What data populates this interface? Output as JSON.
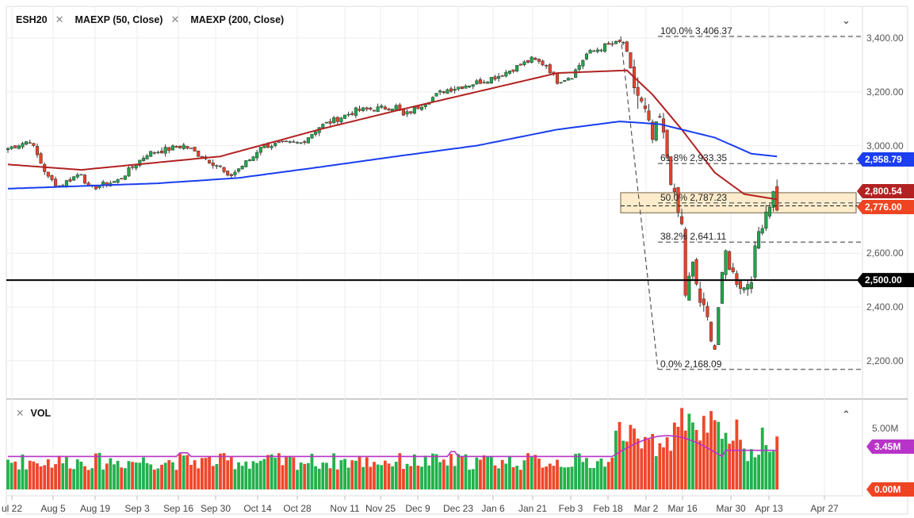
{
  "legend": {
    "symbol": "ESH20",
    "indicators": [
      {
        "label": "MAEXP (50, Close)",
        "color": "#b22222"
      },
      {
        "label": "MAEXP (200, Close)",
        "color": "#1a3ef0"
      }
    ],
    "remove_icon": "close-x-icon"
  },
  "volume_legend": {
    "label": "VOL",
    "collapse_icon": "chevron-up-icon"
  },
  "price_axis": [
    "3,400.00",
    "3,200.00",
    "3,000.00",
    "2,600.00",
    "2,400.00",
    "2,200.00"
  ],
  "price_tags": {
    "ma200": {
      "text": "2,958.79",
      "color": "#1a3ef0"
    },
    "ma50": {
      "text": "2,800.54",
      "color": "#b22222"
    },
    "last": {
      "text": "2,776.00",
      "color": "#ee4422"
    },
    "level": {
      "text": "2,500.00",
      "color": "#000000"
    }
  },
  "volume_axis": {
    "label": "5.00M",
    "avg_tag": "3.45M",
    "avg_color": "#b833c8",
    "zero_tag": "0.00M",
    "zero_color": "#ee4422"
  },
  "dates": [
    "ul 22",
    "Aug 5",
    "Aug 19",
    "Sep 3",
    "Sep 16",
    "Sep 30",
    "Oct 14",
    "Oct 28",
    "Nov 11",
    "Nov 25",
    "Dec 9",
    "Dec 23",
    "Jan 6",
    "Jan 21",
    "Feb 3",
    "Feb 18",
    "Mar 2",
    "Mar 16",
    "Mar 30",
    "Apr 13",
    "Apr 27"
  ],
  "fibonacci": [
    {
      "label": "100.0% 3,406.37",
      "price": 3406.37
    },
    {
      "label": "61.8% 2,933.35",
      "price": 2933.35
    },
    {
      "label": "50.0% 2,787.23",
      "price": 2787.23
    },
    {
      "label": "38.2% 2,641.11",
      "price": 2641.11
    },
    {
      "label": "0.0% 2,168.09",
      "price": 2168.09
    }
  ],
  "support_level": 2500,
  "zone": {
    "top": 2825,
    "bottom": 2750
  },
  "chart_data": {
    "type": "candlestick",
    "symbol": "ESH20",
    "ylim": [
      2100,
      3480
    ],
    "note": "approximate closes sampled along the trading-day axis (day index, price)",
    "price_keypoints": [
      [
        0,
        2990
      ],
      [
        6,
        3020
      ],
      [
        11,
        2880
      ],
      [
        14,
        2850
      ],
      [
        20,
        2900
      ],
      [
        22,
        2840
      ],
      [
        30,
        2870
      ],
      [
        38,
        2970
      ],
      [
        48,
        3000
      ],
      [
        58,
        2920
      ],
      [
        60,
        2880
      ],
      [
        67,
        2960
      ],
      [
        69,
        3000
      ],
      [
        80,
        3010
      ],
      [
        85,
        3070
      ],
      [
        95,
        3130
      ],
      [
        106,
        3145
      ],
      [
        108,
        3110
      ],
      [
        119,
        3205
      ],
      [
        128,
        3235
      ],
      [
        134,
        3260
      ],
      [
        143,
        3320
      ],
      [
        147,
        3300
      ],
      [
        150,
        3240
      ],
      [
        154,
        3260
      ],
      [
        158,
        3340
      ],
      [
        163,
        3370
      ],
      [
        168,
        3385
      ],
      [
        169,
        3340
      ],
      [
        171,
        3220
      ],
      [
        174,
        3120
      ],
      [
        176,
        3020
      ],
      [
        178,
        3100
      ],
      [
        180,
        2960
      ],
      [
        182,
        2800
      ],
      [
        184,
        2700
      ],
      [
        185,
        2450
      ],
      [
        187,
        2550
      ],
      [
        189,
        2420
      ],
      [
        191,
        2350
      ],
      [
        193,
        2250
      ],
      [
        194,
        2400
      ],
      [
        196,
        2600
      ],
      [
        198,
        2520
      ],
      [
        201,
        2470
      ],
      [
        203,
        2520
      ],
      [
        205,
        2680
      ],
      [
        207,
        2760
      ],
      [
        209,
        2820
      ],
      [
        210,
        2776
      ]
    ],
    "ma50_keypoints": [
      [
        0,
        2930
      ],
      [
        20,
        2910
      ],
      [
        58,
        2960
      ],
      [
        85,
        3060
      ],
      [
        106,
        3130
      ],
      [
        128,
        3200
      ],
      [
        150,
        3270
      ],
      [
        169,
        3280
      ],
      [
        176,
        3190
      ],
      [
        184,
        3060
      ],
      [
        193,
        2900
      ],
      [
        201,
        2820
      ],
      [
        210,
        2800
      ]
    ],
    "ma200_keypoints": [
      [
        0,
        2840
      ],
      [
        41,
        2860
      ],
      [
        63,
        2880
      ],
      [
        85,
        2920
      ],
      [
        106,
        2960
      ],
      [
        128,
        3000
      ],
      [
        150,
        3060
      ],
      [
        167,
        3090
      ],
      [
        178,
        3080
      ],
      [
        193,
        3030
      ],
      [
        203,
        2970
      ],
      [
        210,
        2960
      ]
    ],
    "volume_avg_millions": 2.7,
    "volume_peak_millions": 5.8,
    "series": [
      {
        "name": "MAEXP (50, Close)",
        "last": 2800.54
      },
      {
        "name": "MAEXP (200, Close)",
        "last": 2958.79
      },
      {
        "name": "VOL avg",
        "last": 3.45
      }
    ]
  }
}
